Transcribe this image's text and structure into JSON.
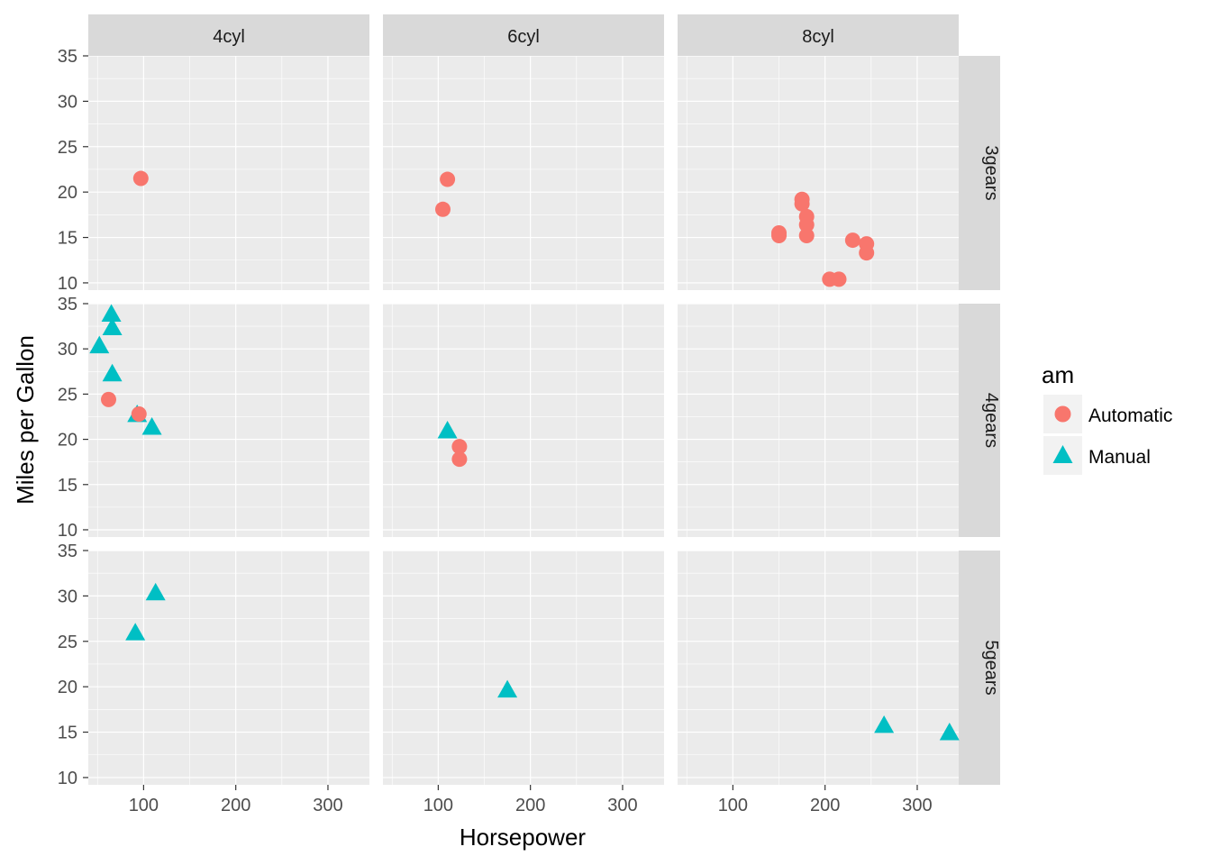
{
  "chart_data": {
    "type": "scatter",
    "xlabel": "Horsepower",
    "ylabel": "Miles per Gallon",
    "facet_cols": [
      "4cyl",
      "6cyl",
      "8cyl"
    ],
    "facet_rows": [
      "3gears",
      "4gears",
      "5gears"
    ],
    "xlim": [
      40,
      345
    ],
    "ylim": [
      9.2,
      35.0
    ],
    "x_ticks": [
      100,
      200,
      300
    ],
    "y_ticks": [
      10,
      15,
      20,
      25,
      30,
      35
    ],
    "grid": true,
    "legend": {
      "title": "am",
      "placement": "right",
      "entries": [
        {
          "name": "Automatic",
          "shape": "circle",
          "color": "#F8766D"
        },
        {
          "name": "Manual",
          "shape": "triangle",
          "color": "#00BFC4"
        }
      ]
    },
    "points": [
      {
        "cyl": "4cyl",
        "gears": "3gears",
        "am": "Automatic",
        "hp": 97,
        "mpg": 21.5
      },
      {
        "cyl": "6cyl",
        "gears": "3gears",
        "am": "Automatic",
        "hp": 110,
        "mpg": 21.4
      },
      {
        "cyl": "6cyl",
        "gears": "3gears",
        "am": "Automatic",
        "hp": 105,
        "mpg": 18.1
      },
      {
        "cyl": "8cyl",
        "gears": "3gears",
        "am": "Automatic",
        "hp": 175,
        "mpg": 18.7
      },
      {
        "cyl": "8cyl",
        "gears": "3gears",
        "am": "Automatic",
        "hp": 175,
        "mpg": 19.2
      },
      {
        "cyl": "8cyl",
        "gears": "3gears",
        "am": "Automatic",
        "hp": 180,
        "mpg": 17.3
      },
      {
        "cyl": "8cyl",
        "gears": "3gears",
        "am": "Automatic",
        "hp": 180,
        "mpg": 16.4
      },
      {
        "cyl": "8cyl",
        "gears": "3gears",
        "am": "Automatic",
        "hp": 180,
        "mpg": 15.2
      },
      {
        "cyl": "8cyl",
        "gears": "3gears",
        "am": "Automatic",
        "hp": 150,
        "mpg": 15.5
      },
      {
        "cyl": "8cyl",
        "gears": "3gears",
        "am": "Automatic",
        "hp": 150,
        "mpg": 15.2
      },
      {
        "cyl": "8cyl",
        "gears": "3gears",
        "am": "Automatic",
        "hp": 230,
        "mpg": 14.7
      },
      {
        "cyl": "8cyl",
        "gears": "3gears",
        "am": "Automatic",
        "hp": 245,
        "mpg": 14.3
      },
      {
        "cyl": "8cyl",
        "gears": "3gears",
        "am": "Automatic",
        "hp": 245,
        "mpg": 13.3
      },
      {
        "cyl": "8cyl",
        "gears": "3gears",
        "am": "Automatic",
        "hp": 205,
        "mpg": 10.4
      },
      {
        "cyl": "8cyl",
        "gears": "3gears",
        "am": "Automatic",
        "hp": 215,
        "mpg": 10.4
      },
      {
        "cyl": "4cyl",
        "gears": "4gears",
        "am": "Manual",
        "hp": 65,
        "mpg": 33.9
      },
      {
        "cyl": "4cyl",
        "gears": "4gears",
        "am": "Manual",
        "hp": 66,
        "mpg": 32.4
      },
      {
        "cyl": "4cyl",
        "gears": "4gears",
        "am": "Manual",
        "hp": 52,
        "mpg": 30.4
      },
      {
        "cyl": "4cyl",
        "gears": "4gears",
        "am": "Manual",
        "hp": 66,
        "mpg": 27.3
      },
      {
        "cyl": "4cyl",
        "gears": "4gears",
        "am": "Manual",
        "hp": 93,
        "mpg": 22.8
      },
      {
        "cyl": "4cyl",
        "gears": "4gears",
        "am": "Manual",
        "hp": 109,
        "mpg": 21.4
      },
      {
        "cyl": "4cyl",
        "gears": "4gears",
        "am": "Automatic",
        "hp": 62,
        "mpg": 24.4
      },
      {
        "cyl": "4cyl",
        "gears": "4gears",
        "am": "Automatic",
        "hp": 95,
        "mpg": 22.8
      },
      {
        "cyl": "6cyl",
        "gears": "4gears",
        "am": "Manual",
        "hp": 110,
        "mpg": 21.0
      },
      {
        "cyl": "6cyl",
        "gears": "4gears",
        "am": "Automatic",
        "hp": 123,
        "mpg": 19.2
      },
      {
        "cyl": "6cyl",
        "gears": "4gears",
        "am": "Automatic",
        "hp": 123,
        "mpg": 17.8
      },
      {
        "cyl": "4cyl",
        "gears": "5gears",
        "am": "Manual",
        "hp": 113,
        "mpg": 30.4
      },
      {
        "cyl": "4cyl",
        "gears": "5gears",
        "am": "Manual",
        "hp": 91,
        "mpg": 26.0
      },
      {
        "cyl": "6cyl",
        "gears": "5gears",
        "am": "Manual",
        "hp": 175,
        "mpg": 19.7
      },
      {
        "cyl": "8cyl",
        "gears": "5gears",
        "am": "Manual",
        "hp": 264,
        "mpg": 15.8
      },
      {
        "cyl": "8cyl",
        "gears": "5gears",
        "am": "Manual",
        "hp": 335,
        "mpg": 15.0
      }
    ]
  }
}
